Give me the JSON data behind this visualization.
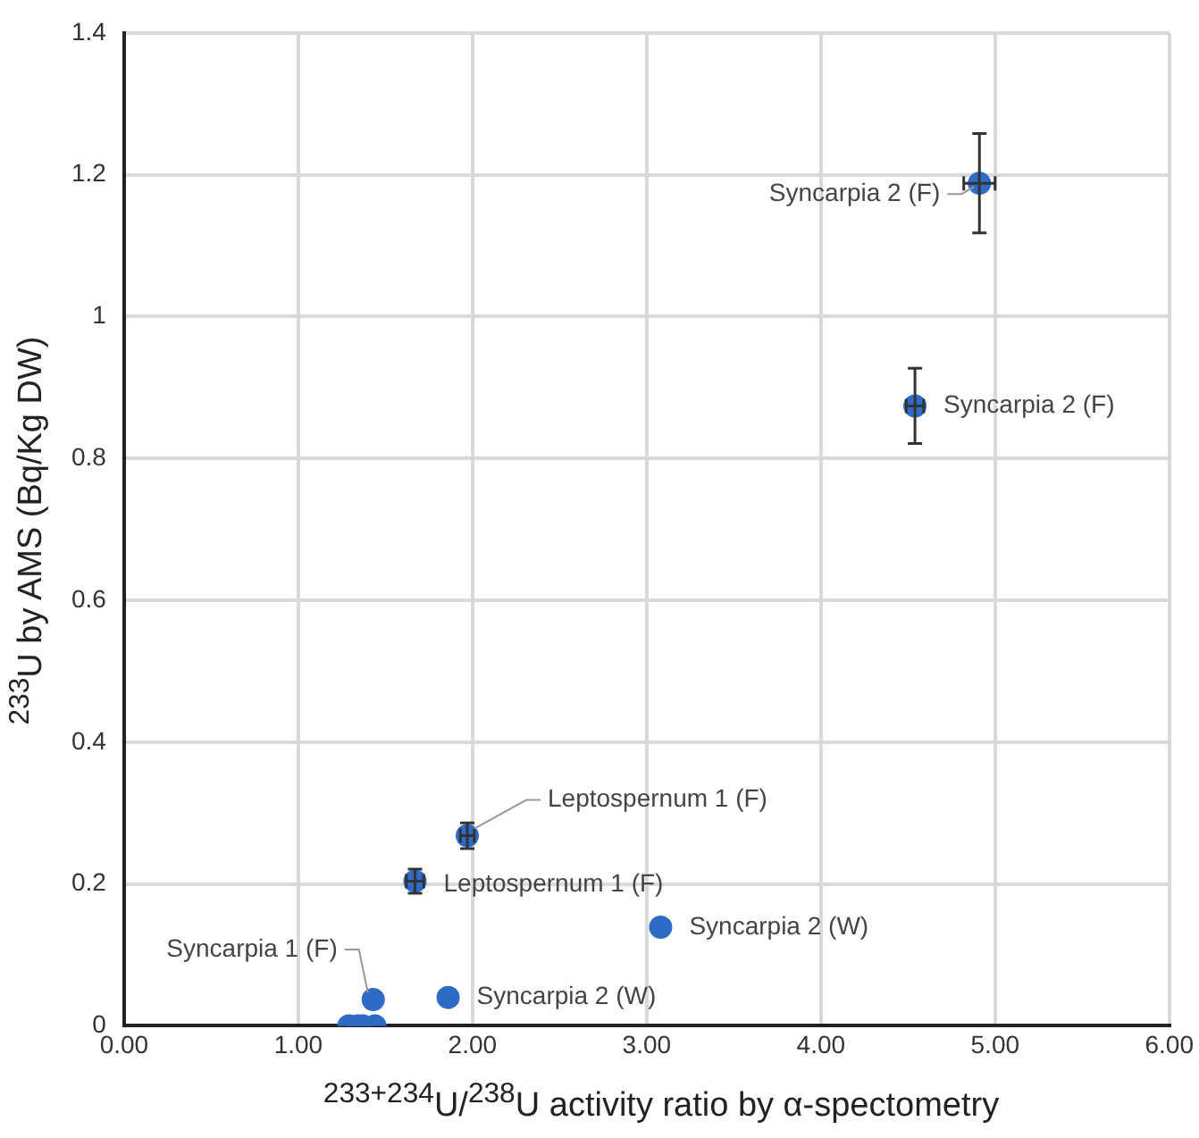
{
  "chart_data": {
    "type": "scatter",
    "xlabel": "$^{233+234}$U/$^{238}$U activity ratio by α-spectometry",
    "ylabel": "$^{233}$U by AMS (Bq/Kg DW)",
    "x": [
      4.91,
      4.54,
      1.97,
      1.67,
      3.08,
      1.86,
      1.43,
      1.29,
      1.34,
      1.37,
      1.44
    ],
    "series": [
      {
        "color": "#2e6bc6",
        "values": [
          1.188,
          0.874,
          0.268,
          0.204,
          0.139,
          0.04,
          0.037,
          0,
          0,
          0,
          0
        ],
        "errors": [
          0.07,
          0.053,
          0.018,
          0.017,
          null,
          null,
          null,
          null,
          null,
          null,
          null
        ],
        "xerrors": [
          0.09,
          0.05,
          0.04,
          0.05,
          null,
          null,
          null,
          null,
          null,
          null,
          null
        ]
      }
    ],
    "xlim": [
      0,
      6
    ],
    "xticks": [
      {
        "value": 0,
        "label": "0.00"
      },
      {
        "value": 1,
        "label": "1.00"
      },
      {
        "value": 2,
        "label": "2.00"
      },
      {
        "value": 3,
        "label": "3.00"
      },
      {
        "value": 4,
        "label": "4.00"
      },
      {
        "value": 5,
        "label": "5.00"
      },
      {
        "value": 6,
        "label": "6.00"
      }
    ],
    "ylim": [
      0,
      1.4
    ],
    "yticks": [
      0,
      0.2,
      0.4,
      0.6,
      0.8,
      1,
      1.2,
      1.4
    ],
    "annotations": [
      {
        "text": "Syncarpia 2 (F)",
        "x": 4.91,
        "y": 1.188
      },
      {
        "text": "Syncarpia 2 (F)",
        "x": 4.54,
        "y": 0.874
      },
      {
        "text": "Leptospernum 1 (F)",
        "x": 1.97,
        "y": 0.268
      },
      {
        "text": "Leptospernum 1 (F)",
        "x": 1.67,
        "y": 0.204
      },
      {
        "text": "Syncarpia 2 (W)",
        "x": 3.08,
        "y": 0.139
      },
      {
        "text": "Syncarpia 2 (W)",
        "x": 1.86,
        "y": 0.04
      },
      {
        "text": "Syncarpia 1 (F)",
        "x": 1.43,
        "y": 0.037
      }
    ],
    "grid": true,
    "legend": false,
    "marker": "circle"
  }
}
